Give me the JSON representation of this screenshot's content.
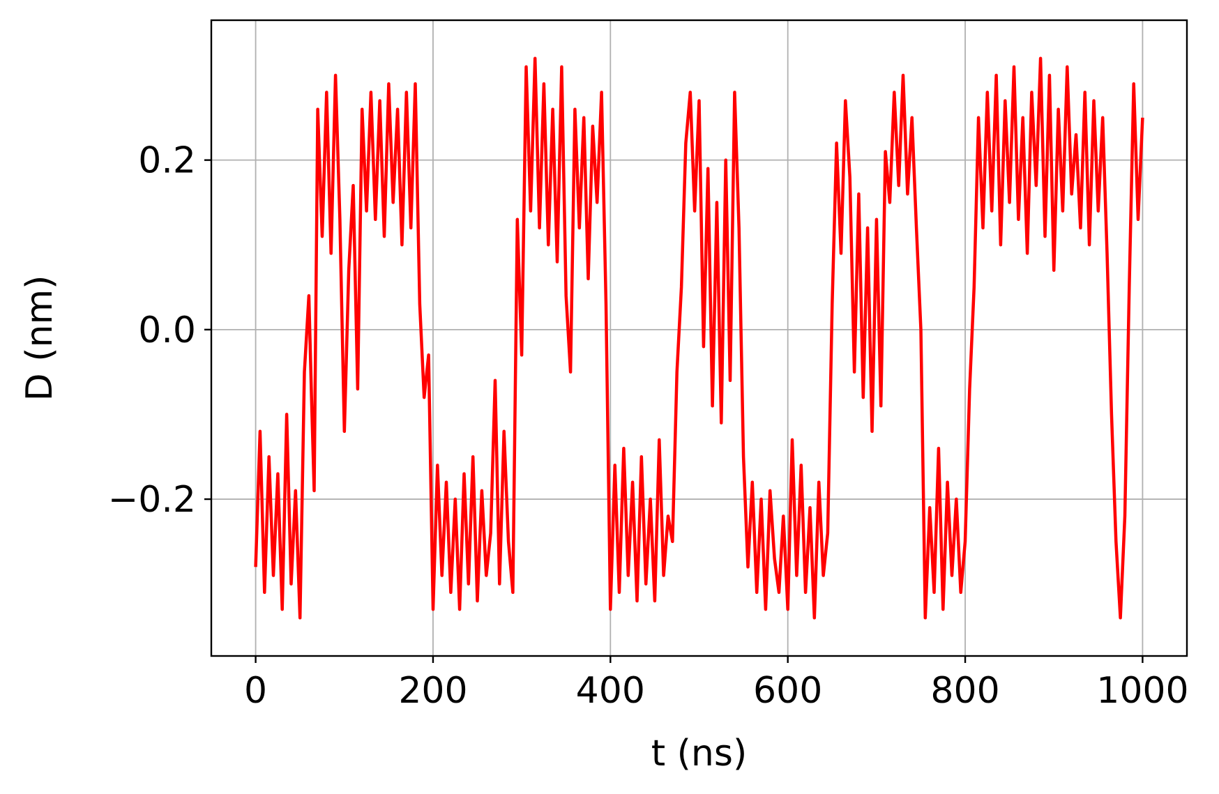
{
  "chart_data": {
    "type": "line",
    "title": "",
    "xlabel": "t (ns)",
    "ylabel": "D (nm)",
    "xlim": [
      -50,
      1050
    ],
    "ylim": [
      -0.385,
      0.365
    ],
    "x_ticks": [
      0,
      200,
      400,
      600,
      800,
      1000
    ],
    "x_tick_labels": [
      "0",
      "200",
      "400",
      "600",
      "800",
      "1000"
    ],
    "y_ticks": [
      -0.2,
      0.0,
      0.2
    ],
    "y_tick_labels": [
      "−0.2",
      "0.0",
      "0.2"
    ],
    "grid": true,
    "legend": "none",
    "series": [
      {
        "color": "#ff0000",
        "x": [
          0,
          5,
          10,
          15,
          20,
          25,
          30,
          35,
          40,
          45,
          50,
          55,
          60,
          63,
          66,
          70,
          75,
          80,
          85,
          90,
          95,
          100,
          105,
          110,
          115,
          120,
          125,
          130,
          135,
          140,
          145,
          150,
          155,
          160,
          165,
          170,
          175,
          180,
          185,
          190,
          195,
          200,
          205,
          210,
          215,
          220,
          225,
          230,
          235,
          240,
          245,
          250,
          255,
          260,
          265,
          270,
          275,
          280,
          285,
          290,
          295,
          300,
          305,
          310,
          315,
          320,
          325,
          330,
          335,
          340,
          345,
          350,
          355,
          360,
          365,
          370,
          375,
          380,
          385,
          390,
          395,
          400,
          405,
          410,
          415,
          420,
          425,
          430,
          435,
          440,
          445,
          450,
          455,
          460,
          465,
          470,
          475,
          480,
          485,
          490,
          495,
          500,
          505,
          510,
          515,
          520,
          525,
          530,
          535,
          540,
          545,
          550,
          555,
          560,
          565,
          570,
          575,
          580,
          585,
          590,
          595,
          600,
          605,
          610,
          615,
          620,
          625,
          630,
          635,
          640,
          645,
          650,
          655,
          660,
          665,
          670,
          675,
          680,
          685,
          690,
          695,
          700,
          705,
          710,
          715,
          720,
          725,
          730,
          735,
          740,
          745,
          750,
          755,
          760,
          765,
          770,
          775,
          780,
          785,
          790,
          795,
          800,
          805,
          810,
          815,
          820,
          825,
          830,
          835,
          840,
          845,
          850,
          855,
          860,
          865,
          870,
          875,
          880,
          885,
          890,
          895,
          900,
          905,
          910,
          915,
          920,
          925,
          930,
          935,
          940,
          945,
          950,
          955,
          960,
          965,
          970,
          975,
          980,
          985,
          990,
          995,
          1000
        ],
        "y": [
          -0.28,
          -0.12,
          -0.31,
          -0.15,
          -0.29,
          -0.17,
          -0.33,
          -0.1,
          -0.3,
          -0.19,
          -0.34,
          -0.05,
          0.04,
          -0.08,
          -0.19,
          0.26,
          0.11,
          0.28,
          0.09,
          0.3,
          0.13,
          -0.12,
          0.07,
          0.17,
          -0.07,
          0.26,
          0.14,
          0.28,
          0.13,
          0.27,
          0.11,
          0.29,
          0.15,
          0.26,
          0.1,
          0.28,
          0.12,
          0.29,
          0.03,
          -0.08,
          -0.03,
          -0.33,
          -0.16,
          -0.29,
          -0.18,
          -0.31,
          -0.2,
          -0.33,
          -0.17,
          -0.3,
          -0.15,
          -0.32,
          -0.19,
          -0.29,
          -0.24,
          -0.06,
          -0.3,
          -0.12,
          -0.25,
          -0.31,
          0.13,
          -0.03,
          0.31,
          0.14,
          0.32,
          0.12,
          0.29,
          0.1,
          0.26,
          0.08,
          0.31,
          0.04,
          -0.05,
          0.26,
          0.12,
          0.25,
          0.06,
          0.24,
          0.15,
          0.28,
          0.03,
          -0.33,
          -0.16,
          -0.31,
          -0.14,
          -0.29,
          -0.18,
          -0.32,
          -0.15,
          -0.3,
          -0.2,
          -0.32,
          -0.13,
          -0.29,
          -0.22,
          -0.25,
          -0.05,
          0.05,
          0.22,
          0.28,
          0.14,
          0.27,
          -0.02,
          0.19,
          -0.09,
          0.15,
          -0.11,
          0.2,
          -0.06,
          0.28,
          0.12,
          -0.15,
          -0.28,
          -0.18,
          -0.31,
          -0.2,
          -0.33,
          -0.19,
          -0.27,
          -0.31,
          -0.22,
          -0.33,
          -0.13,
          -0.29,
          -0.16,
          -0.31,
          -0.21,
          -0.34,
          -0.18,
          -0.29,
          -0.24,
          0.03,
          0.22,
          0.09,
          0.27,
          0.18,
          -0.05,
          0.16,
          -0.08,
          0.12,
          -0.12,
          0.13,
          -0.09,
          0.21,
          0.15,
          0.28,
          0.17,
          0.3,
          0.16,
          0.25,
          0.12,
          0.0,
          -0.34,
          -0.21,
          -0.31,
          -0.14,
          -0.33,
          -0.18,
          -0.29,
          -0.2,
          -0.31,
          -0.25,
          -0.07,
          0.05,
          0.25,
          0.12,
          0.28,
          0.14,
          0.3,
          0.1,
          0.27,
          0.15,
          0.31,
          0.13,
          0.25,
          0.09,
          0.28,
          0.17,
          0.32,
          0.11,
          0.3,
          0.07,
          0.26,
          0.14,
          0.31,
          0.16,
          0.23,
          0.12,
          0.28,
          0.1,
          0.27,
          0.14,
          0.25,
          0.09,
          -0.1,
          -0.25,
          -0.34,
          -0.22,
          0.05,
          0.29,
          0.13,
          0.25
        ]
      }
    ]
  }
}
